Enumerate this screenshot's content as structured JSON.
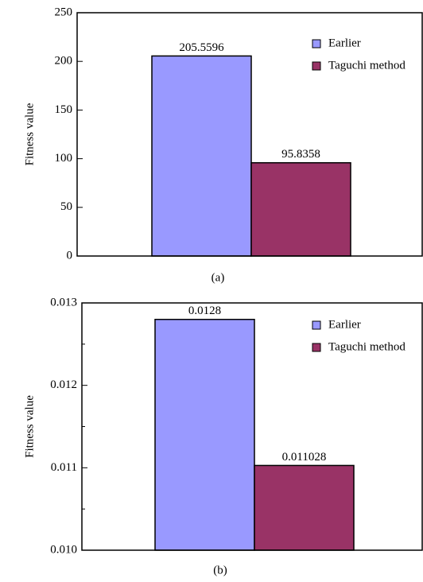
{
  "chart_data": [
    {
      "type": "bar",
      "caption": "(a)",
      "y_label": "Fitness value",
      "ylim": [
        0,
        250
      ],
      "yticks": [
        0,
        50,
        100,
        150,
        200,
        250
      ],
      "series": [
        {
          "name": "Earlier",
          "color": "#9999ff",
          "values": [
            205.5596
          ]
        },
        {
          "name": "Taguchi method",
          "color": "#993366",
          "values": [
            95.8358
          ]
        }
      ]
    },
    {
      "type": "bar",
      "caption": "(b)",
      "y_label": "Fitness value",
      "ylim": [
        0.01,
        0.013
      ],
      "yticks": [
        {
          "value": 0.01,
          "label": "0.010"
        },
        0.011,
        0.012,
        0.013
      ],
      "minor_yticks": [
        0.0105,
        0.0115,
        0.0125
      ],
      "series": [
        {
          "name": "Earlier",
          "color": "#9999ff",
          "values": [
            0.0128
          ]
        },
        {
          "name": "Taguchi method",
          "color": "#993366",
          "values": [
            0.011028
          ]
        }
      ]
    }
  ]
}
